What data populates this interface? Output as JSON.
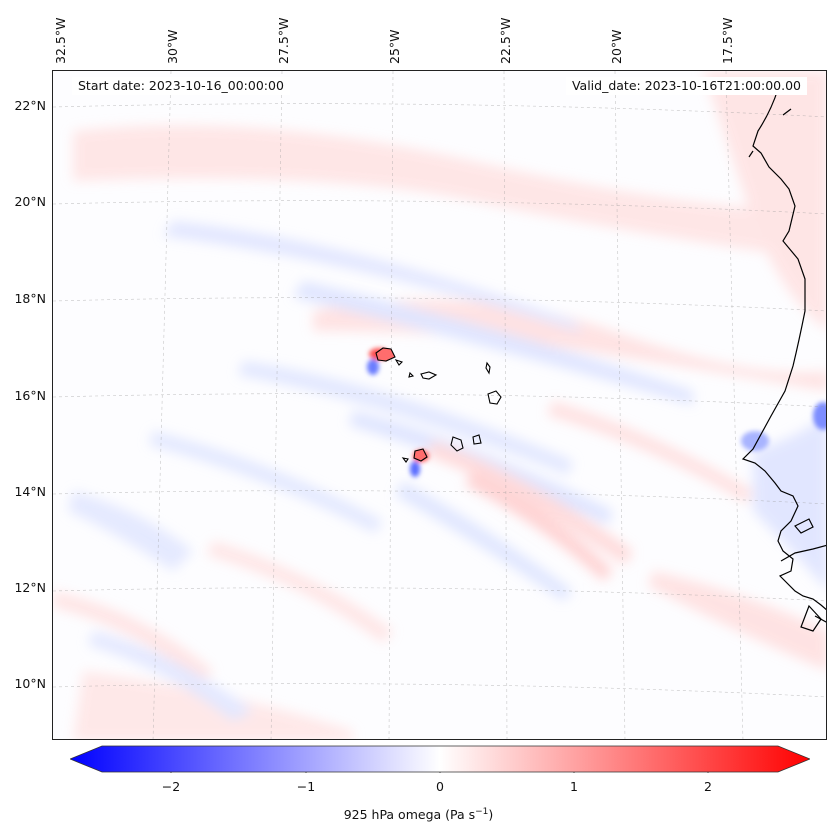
{
  "header": {
    "start_date": "Start date: 2023-10-16_00:00:00",
    "valid_date": "Valid_date: 2023-10-16T21:00:00.00"
  },
  "map": {
    "lon_labels": [
      "32.5°W",
      "30°W",
      "27.5°W",
      "25°W",
      "22.5°W",
      "20°W",
      "17.5°W"
    ],
    "lat_labels": [
      "22°N",
      "20°N",
      "18°N",
      "16°N",
      "14°N",
      "12°N",
      "10°N"
    ],
    "field": "925 hPa omega",
    "colors": {
      "negative": "#0000ff",
      "positive": "#ff0000",
      "zero": "#ffffff",
      "coast": "#000000"
    }
  },
  "colorbar": {
    "label": "925 hPa omega (Pa s",
    "label_sup": "−1",
    "label_close": ")",
    "ticks": [
      "−2",
      "−1",
      "0",
      "1",
      "2"
    ],
    "range": [
      -2.6,
      2.6
    ]
  }
}
